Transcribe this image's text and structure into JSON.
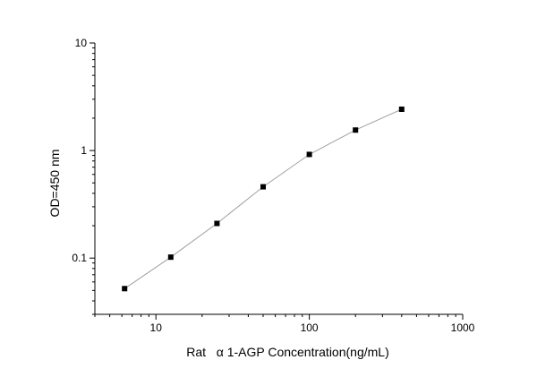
{
  "chart_data": {
    "type": "scatter",
    "xlabel": "Rat   α 1-AGP Concentration(ng/mL)",
    "ylabel": "OD=450 nm",
    "xscale": "log",
    "yscale": "log",
    "xlim": [
      4,
      1000
    ],
    "ylim": [
      0.03,
      10
    ],
    "x_ticks": [
      {
        "value": 10,
        "label": "10"
      },
      {
        "value": 100,
        "label": "100"
      },
      {
        "value": 1000,
        "label": "1000"
      }
    ],
    "y_ticks": [
      {
        "value": 0.1,
        "label": "0.1"
      },
      {
        "value": 1,
        "label": "1"
      },
      {
        "value": 10,
        "label": "10"
      }
    ],
    "grid": false,
    "line_color": "#a0a0a0",
    "marker_color": "#000000",
    "series": [
      {
        "x": [
          6.25,
          12.5,
          25,
          50,
          100,
          200,
          400
        ],
        "y": [
          0.052,
          0.102,
          0.21,
          0.46,
          0.92,
          1.55,
          2.42
        ]
      }
    ]
  }
}
